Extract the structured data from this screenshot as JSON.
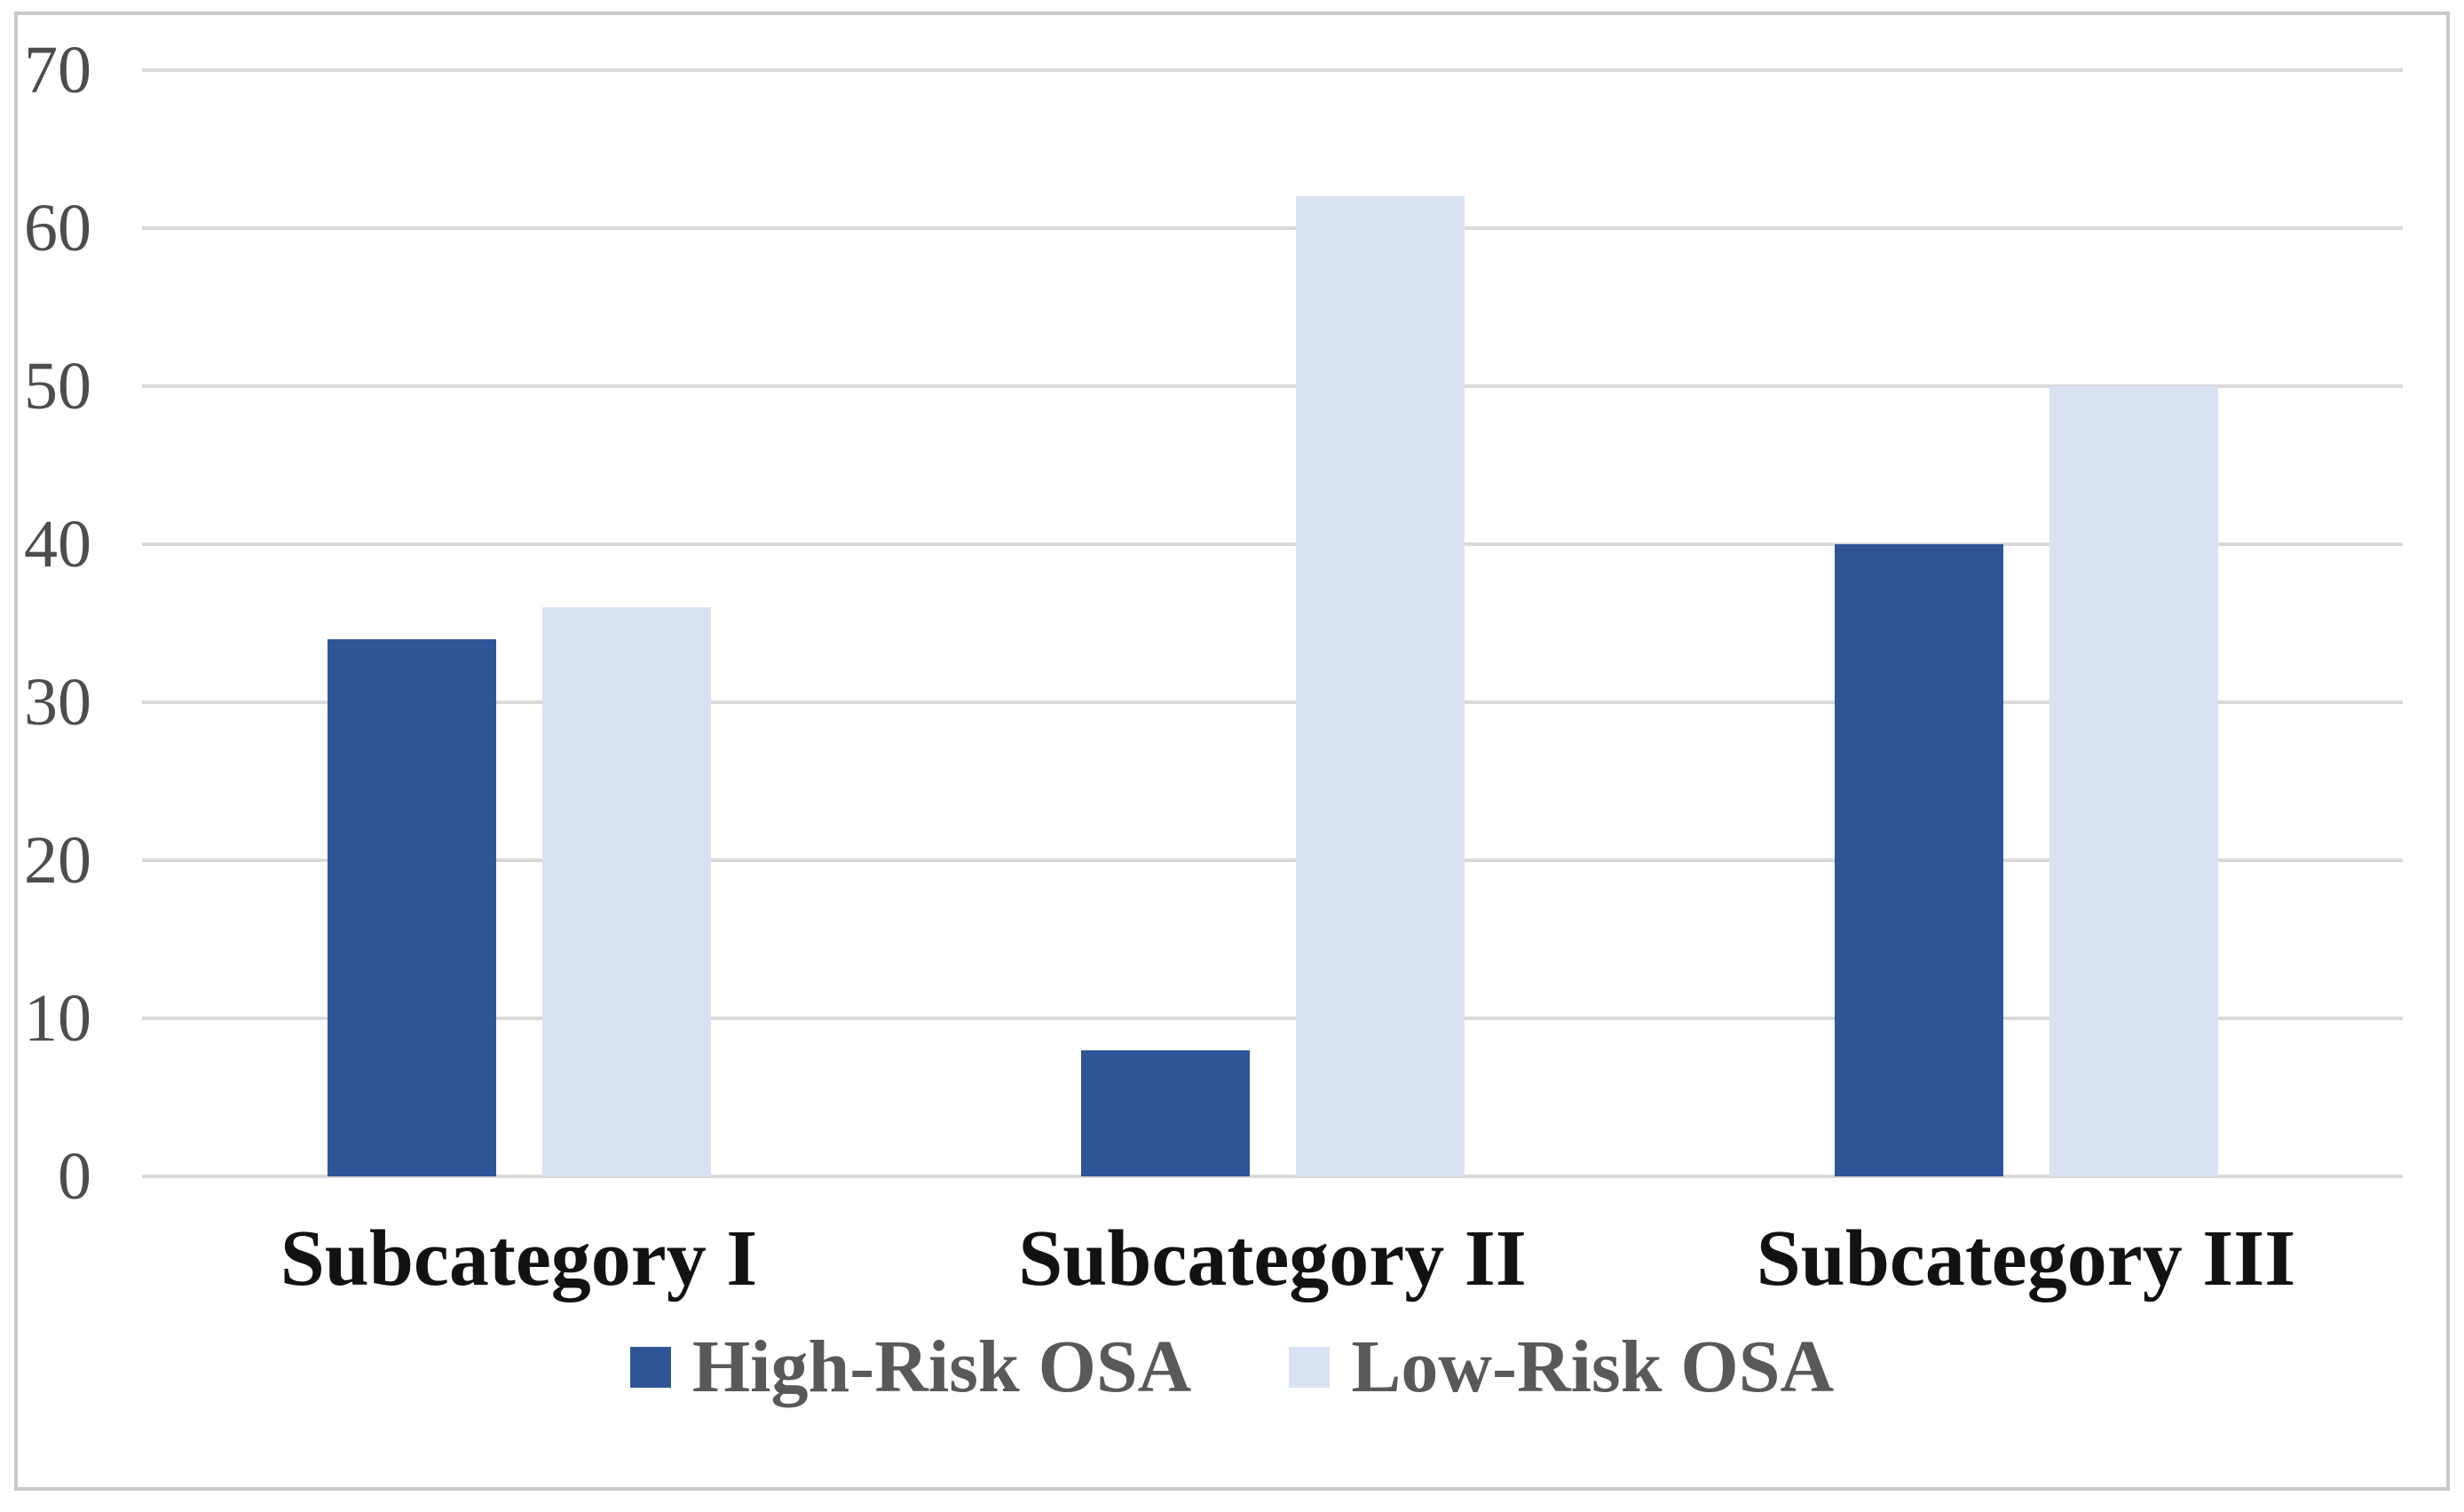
{
  "chart_data": {
    "type": "bar",
    "categories": [
      "Subcategory I",
      "Subcategory II",
      "Subcategory III"
    ],
    "series": [
      {
        "name": "High-Risk OSA",
        "color": "#2F5597",
        "values": [
          34,
          8,
          40
        ]
      },
      {
        "name": "Low-Risk OSA",
        "color": "#D9E2F2",
        "values": [
          36,
          62,
          50
        ]
      }
    ],
    "ylim": [
      0,
      70
    ],
    "yticks": [
      0,
      10,
      20,
      30,
      40,
      50,
      60,
      70
    ],
    "grid": true,
    "legend_position": "bottom"
  },
  "colors": {
    "background": "#FFFFFF",
    "frame_border": "#C9C9C9",
    "gridline": "#D9D9D9",
    "ytick_text": "#4D4D4D",
    "category_text": "#121212",
    "legend_text": "#595959"
  }
}
